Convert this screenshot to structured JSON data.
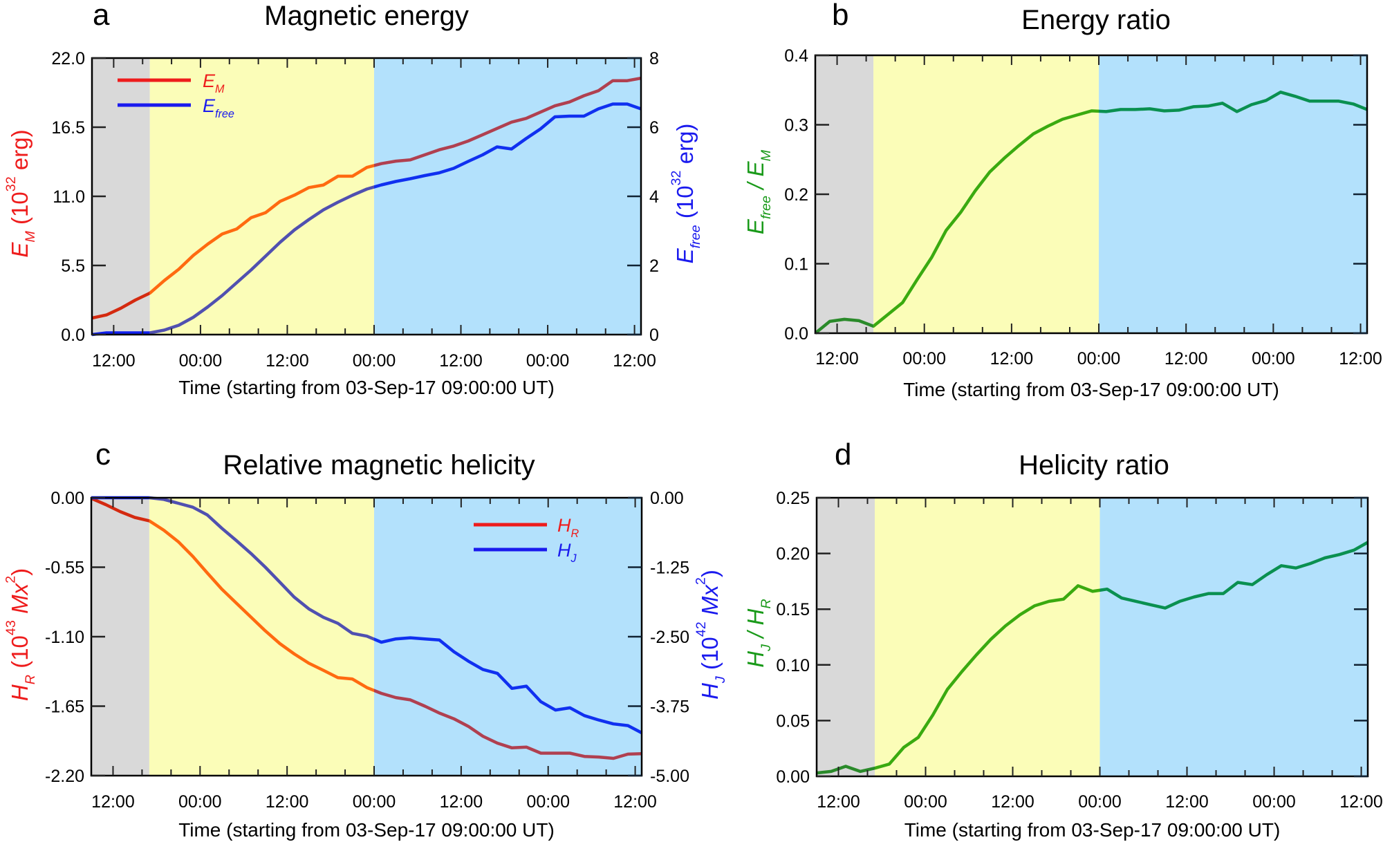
{
  "time_axis": {
    "xlabel": "Time (starting from 03-Sep-17 09:00:00 UT)",
    "xlim": [
      "2017-09-03 09:00",
      "2017-09-06 12:54"
    ],
    "tick_labels": [
      "12:00",
      "00:00",
      "12:00",
      "00:00",
      "12:00",
      "00:00",
      "12:00"
    ],
    "tick_times": [
      "2017-09-03 12:00",
      "2017-09-04 00:00",
      "2017-09-04 12:00",
      "2017-09-05 00:00",
      "2017-09-05 12:00",
      "2017-09-06 00:00",
      "2017-09-06 12:00"
    ],
    "phases": [
      {
        "from": "2017-09-03 09:00",
        "to": "2017-09-03 17:00",
        "color": "#d9d9d9"
      },
      {
        "from": "2017-09-03 17:00",
        "to": "2017-09-05 00:00",
        "color": "#fbfdb8"
      },
      {
        "from": "2017-09-05 00:00",
        "to": "2017-09-06 12:54",
        "color": "#b3e1fc"
      }
    ],
    "x": [
      "2017-09-03 09:00",
      "2017-09-03 11:00",
      "2017-09-03 13:00",
      "2017-09-03 15:00",
      "2017-09-03 17:00",
      "2017-09-03 19:00",
      "2017-09-03 21:00",
      "2017-09-03 23:00",
      "2017-09-04 01:00",
      "2017-09-04 03:00",
      "2017-09-04 05:00",
      "2017-09-04 07:00",
      "2017-09-04 09:00",
      "2017-09-04 11:00",
      "2017-09-04 13:00",
      "2017-09-04 15:00",
      "2017-09-04 17:00",
      "2017-09-04 19:00",
      "2017-09-04 21:00",
      "2017-09-04 23:00",
      "2017-09-05 01:00",
      "2017-09-05 03:00",
      "2017-09-05 05:00",
      "2017-09-05 07:00",
      "2017-09-05 09:00",
      "2017-09-05 11:00",
      "2017-09-05 13:00",
      "2017-09-05 15:00",
      "2017-09-05 17:00",
      "2017-09-05 19:00",
      "2017-09-05 21:00",
      "2017-09-05 23:00",
      "2017-09-06 01:00",
      "2017-09-06 03:00",
      "2017-09-06 05:00",
      "2017-09-06 07:00",
      "2017-09-06 09:00",
      "2017-09-06 11:00",
      "2017-09-06 12:54"
    ]
  },
  "chart_data": [
    {
      "letter": "a",
      "title": "Magnetic energy",
      "type": "line",
      "legend": "top-left",
      "y_left": {
        "label": [
          {
            "t": "E"
          },
          {
            "t": "M",
            "sub": 1
          },
          {
            "t": " (10"
          },
          {
            "t": "32",
            "sup": 1
          },
          {
            "t": " erg)"
          }
        ],
        "color": "#ee1c1c",
        "ylim": [
          0,
          22
        ],
        "ticks": [
          "0.0",
          "5.5",
          "11.0",
          "16.5",
          "22.0"
        ]
      },
      "y_right": {
        "label": [
          {
            "t": "E"
          },
          {
            "t": "free",
            "sub": 1
          },
          {
            "t": " (10"
          },
          {
            "t": "32",
            "sup": 1
          },
          {
            "t": " erg)"
          }
        ],
        "color": "#1a1aee",
        "ylim": [
          0,
          8
        ],
        "ticks": [
          "0",
          "2",
          "4",
          "6",
          "8"
        ]
      },
      "series": [
        {
          "legend": [
            {
              "t": "E"
            },
            {
              "t": "M",
              "sub": 1
            }
          ],
          "axis": "left",
          "colors": [
            "#d42a10",
            "#ff6a10",
            "#b04050"
          ],
          "legend_color": "#ee1c1c",
          "values": [
            1.32,
            1.56,
            2.1,
            2.75,
            3.3,
            4.3,
            5.2,
            6.3,
            7.2,
            8.0,
            8.4,
            9.3,
            9.7,
            10.6,
            11.1,
            11.7,
            11.9,
            12.6,
            12.6,
            13.3,
            13.6,
            13.8,
            13.9,
            14.3,
            14.7,
            15.0,
            15.4,
            15.9,
            16.4,
            16.9,
            17.2,
            17.7,
            18.2,
            18.5,
            19.0,
            19.4,
            20.2,
            20.2,
            20.4
          ]
        },
        {
          "legend": [
            {
              "t": "E"
            },
            {
              "t": "free",
              "sub": 1
            }
          ],
          "axis": "right",
          "colors": [
            "#1020ee",
            "#5050b0",
            "#1030f0"
          ],
          "legend_color": "#1a1aee",
          "values": [
            0.0,
            0.05,
            0.05,
            0.05,
            0.05,
            0.13,
            0.27,
            0.5,
            0.8,
            1.13,
            1.5,
            1.87,
            2.27,
            2.67,
            3.03,
            3.33,
            3.61,
            3.83,
            4.03,
            4.21,
            4.33,
            4.43,
            4.51,
            4.6,
            4.68,
            4.81,
            5.01,
            5.2,
            5.43,
            5.37,
            5.67,
            5.95,
            6.3,
            6.32,
            6.32,
            6.53,
            6.67,
            6.67,
            6.53
          ]
        }
      ]
    },
    {
      "letter": "b",
      "title": "Energy ratio",
      "type": "line",
      "y_left": {
        "label": [
          {
            "t": "E"
          },
          {
            "t": "free",
            "sub": 1
          },
          {
            "t": " / E"
          },
          {
            "t": "M",
            "sub": 1
          }
        ],
        "color": "#1a9a1a",
        "ylim": [
          0,
          0.4
        ],
        "ticks": [
          "0.0",
          "0.1",
          "0.2",
          "0.3",
          "0.4"
        ]
      },
      "series": [
        {
          "axis": "left",
          "colors": [
            "#2a8a2a",
            "#3aaa10",
            "#0a9050"
          ],
          "values": [
            0.0,
            0.017,
            0.02,
            0.018,
            0.01,
            0.027,
            0.044,
            0.077,
            0.109,
            0.148,
            0.174,
            0.205,
            0.232,
            0.252,
            0.27,
            0.287,
            0.298,
            0.308,
            0.314,
            0.32,
            0.319,
            0.322,
            0.322,
            0.323,
            0.32,
            0.321,
            0.326,
            0.327,
            0.331,
            0.319,
            0.329,
            0.335,
            0.347,
            0.341,
            0.334,
            0.334,
            0.334,
            0.33,
            0.322
          ]
        }
      ]
    },
    {
      "letter": "c",
      "title": "Relative magnetic helicity",
      "type": "line",
      "legend": "top-right",
      "y_left": {
        "label": [
          {
            "t": "H"
          },
          {
            "t": "R",
            "sub": 1
          },
          {
            "t": " (10"
          },
          {
            "t": "43",
            "sup": 1
          },
          {
            "t": " Mx"
          },
          {
            "t": "2",
            "sup": 1
          },
          {
            "t": ")"
          }
        ],
        "color": "#ee1c1c",
        "ylim": [
          -2.2,
          0
        ],
        "ticks": [
          "-2.20",
          "-1.65",
          "-1.10",
          "-0.55",
          "0.00"
        ]
      },
      "y_right": {
        "label": [
          {
            "t": "H"
          },
          {
            "t": "J",
            "sub": 1
          },
          {
            "t": " (10"
          },
          {
            "t": "42",
            "sup": 1
          },
          {
            "t": " Mx"
          },
          {
            "t": "2",
            "sup": 1
          },
          {
            "t": ")"
          }
        ],
        "color": "#1a1aee",
        "ylim": [
          -5,
          0
        ],
        "ticks": [
          "-5.00",
          "-3.75",
          "-2.50",
          "-1.25",
          "0.00"
        ]
      },
      "series": [
        {
          "legend": [
            {
              "t": "H"
            },
            {
              "t": "R",
              "sub": 1
            }
          ],
          "axis": "left",
          "colors": [
            "#d42a10",
            "#ff6a10",
            "#b04050"
          ],
          "legend_color": "#ee1c1c",
          "values": [
            -0.005,
            -0.055,
            -0.11,
            -0.156,
            -0.183,
            -0.257,
            -0.348,
            -0.464,
            -0.596,
            -0.724,
            -0.834,
            -0.944,
            -1.054,
            -1.155,
            -1.237,
            -1.31,
            -1.366,
            -1.424,
            -1.435,
            -1.503,
            -1.549,
            -1.582,
            -1.6,
            -1.65,
            -1.705,
            -1.75,
            -1.81,
            -1.888,
            -1.943,
            -1.98,
            -1.974,
            -2.022,
            -2.022,
            -2.022,
            -2.048,
            -2.053,
            -2.063,
            -2.03,
            -2.026
          ]
        },
        {
          "legend": [
            {
              "t": "H"
            },
            {
              "t": "J",
              "sub": 1
            }
          ],
          "axis": "right",
          "colors": [
            "#1020ee",
            "#5050b0",
            "#1030f0"
          ],
          "legend_color": "#1a1aee",
          "values": [
            0.0,
            0.0,
            0.0,
            0.0,
            0.0,
            -0.03,
            -0.1,
            -0.17,
            -0.31,
            -0.55,
            -0.77,
            -1.0,
            -1.25,
            -1.52,
            -1.79,
            -2.0,
            -2.15,
            -2.26,
            -2.44,
            -2.49,
            -2.6,
            -2.54,
            -2.52,
            -2.54,
            -2.56,
            -2.77,
            -2.94,
            -3.09,
            -3.16,
            -3.43,
            -3.39,
            -3.67,
            -3.82,
            -3.78,
            -3.92,
            -4.0,
            -4.07,
            -4.1,
            -4.23
          ]
        }
      ]
    },
    {
      "letter": "d",
      "title": "Helicity ratio",
      "type": "line",
      "y_left": {
        "label": [
          {
            "t": "H"
          },
          {
            "t": "J",
            "sub": 1
          },
          {
            "t": " / H"
          },
          {
            "t": "R",
            "sub": 1
          }
        ],
        "color": "#1a9a1a",
        "ylim": [
          0,
          0.25
        ],
        "ticks": [
          "0.00",
          "0.05",
          "0.10",
          "0.15",
          "0.20",
          "0.25"
        ]
      },
      "series": [
        {
          "axis": "left",
          "colors": [
            "#2a8a2a",
            "#3aaa10",
            "#0a9050"
          ],
          "values": [
            0.003,
            0.0044,
            0.009,
            0.0044,
            0.0073,
            0.011,
            0.026,
            0.035,
            0.055,
            0.078,
            0.094,
            0.109,
            0.123,
            0.135,
            0.145,
            0.153,
            0.157,
            0.159,
            0.171,
            0.166,
            0.168,
            0.16,
            0.157,
            0.154,
            0.151,
            0.157,
            0.161,
            0.164,
            0.164,
            0.174,
            0.172,
            0.181,
            0.189,
            0.187,
            0.191,
            0.196,
            0.199,
            0.203,
            0.21
          ]
        }
      ]
    }
  ]
}
